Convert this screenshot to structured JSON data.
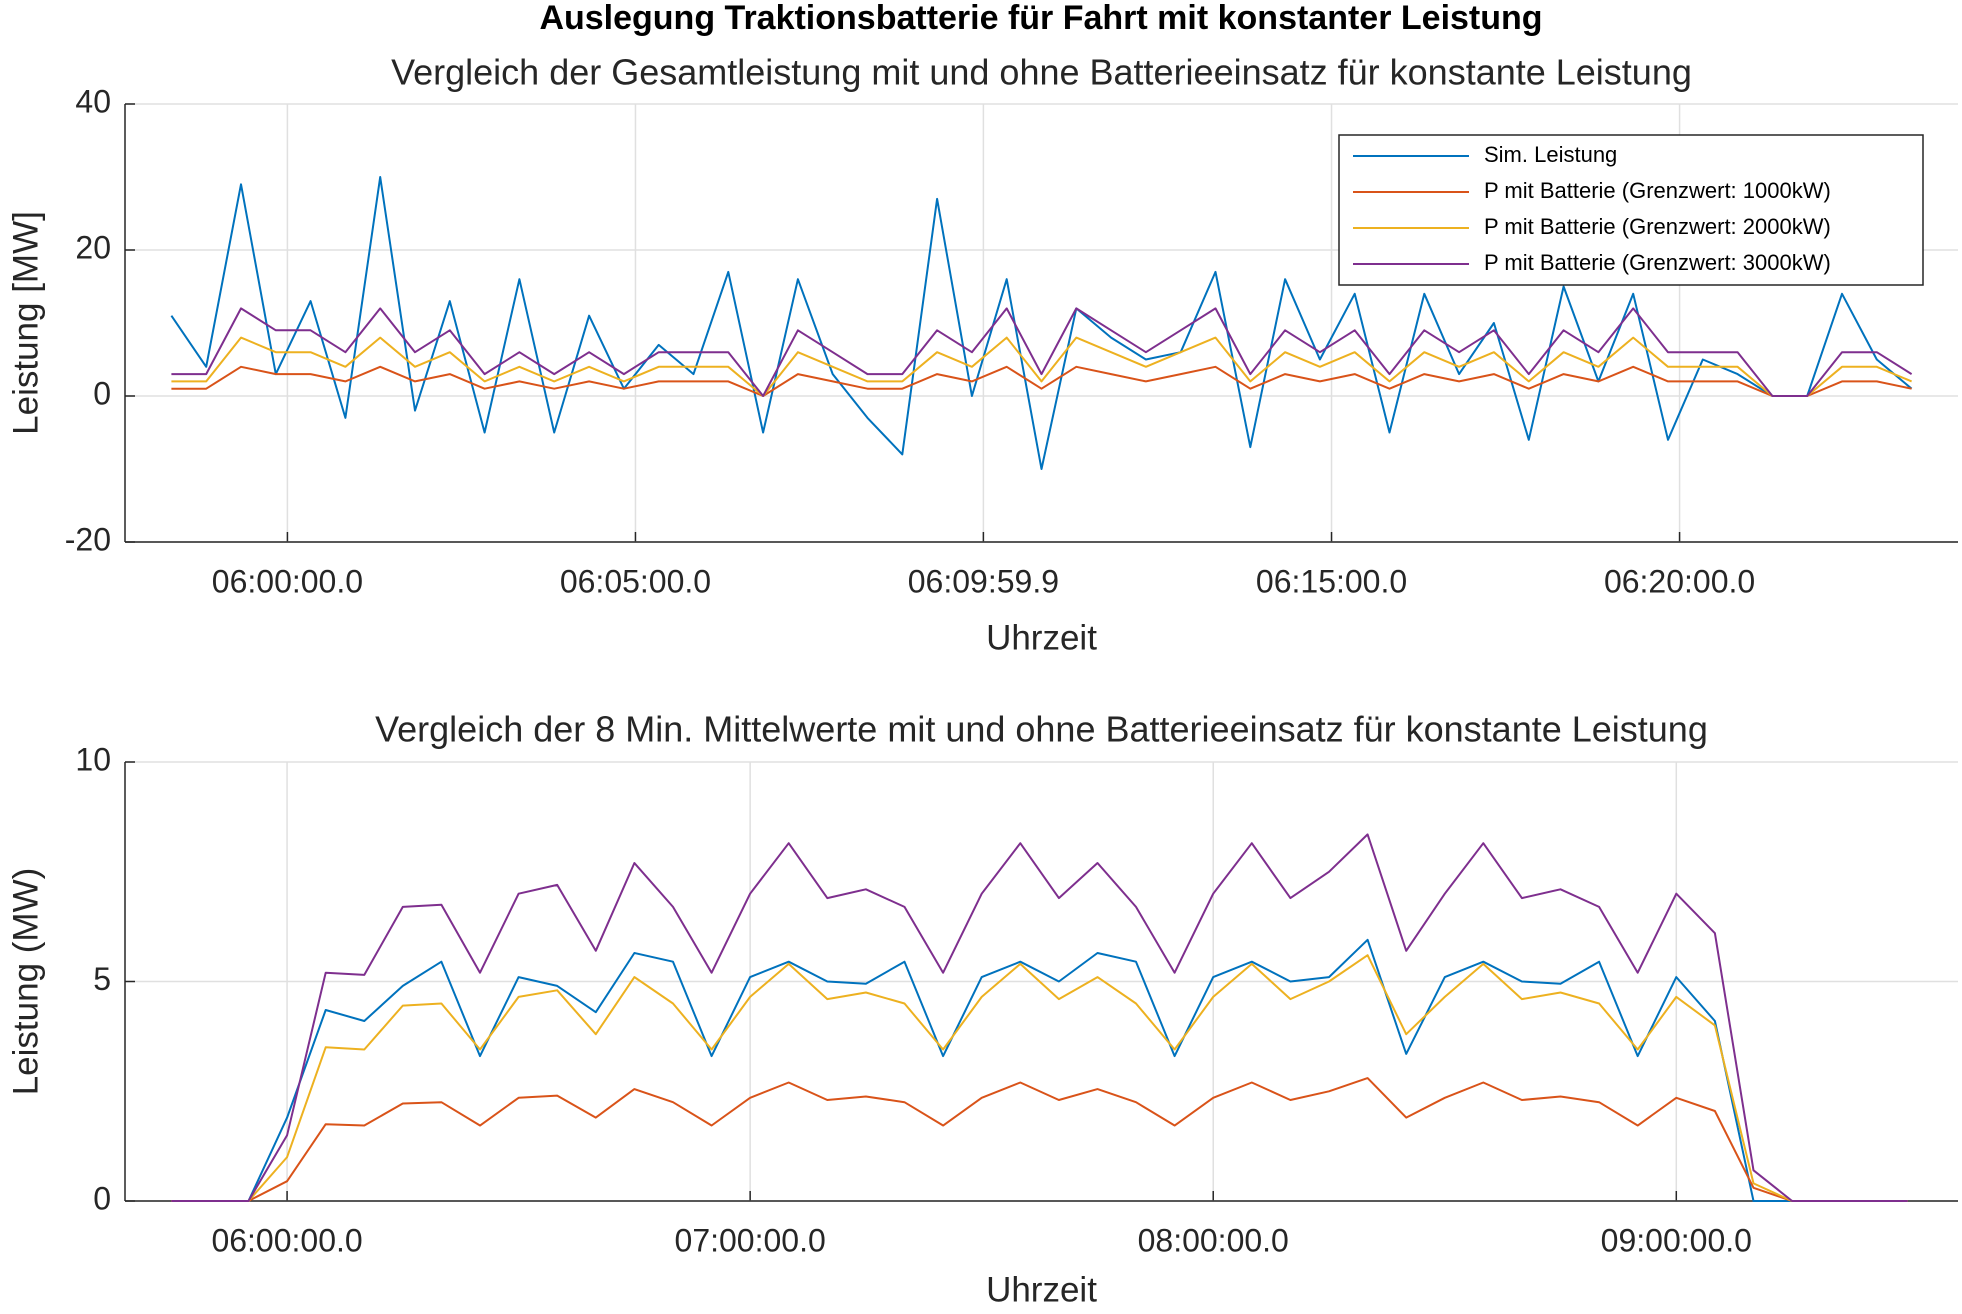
{
  "title": "Auslegung Traktionsbatterie für Fahrt mit konstanter Leistung",
  "chart_data": [
    {
      "type": "line",
      "title": "Vergleich der Gesamtleistung mit und ohne Batterieeinsatz für konstante Leistung",
      "xlabel": "Uhrzeit",
      "ylabel": "Leistung [MW]",
      "x": [
        "05:58:20",
        "05:58:50",
        "05:59:20",
        "05:59:50",
        "06:00:20",
        "06:00:50",
        "06:01:20",
        "06:01:50",
        "06:02:20",
        "06:02:50",
        "06:03:20",
        "06:03:50",
        "06:04:20",
        "06:04:50",
        "06:05:20",
        "06:05:50",
        "06:06:20",
        "06:06:50",
        "06:07:20",
        "06:07:50",
        "06:08:20",
        "06:08:50",
        "06:09:20",
        "06:09:50",
        "06:10:20",
        "06:10:50",
        "06:11:20",
        "06:11:50",
        "06:12:20",
        "06:12:50",
        "06:13:20",
        "06:13:50",
        "06:14:20",
        "06:14:50",
        "06:15:20",
        "06:15:50",
        "06:16:20",
        "06:16:50",
        "06:17:20",
        "06:17:50",
        "06:18:20",
        "06:18:50",
        "06:19:20",
        "06:19:50",
        "06:20:20",
        "06:20:50",
        "06:21:20",
        "06:21:50",
        "06:22:20",
        "06:22:50",
        "06:23:20"
      ],
      "xlim": [
        "05:57:40",
        "06:24:00"
      ],
      "xticks": [
        "06:00:00.0",
        "06:05:00.0",
        "06:09:59.9",
        "06:15:00.0",
        "06:20:00.0"
      ],
      "ylim": [
        -20,
        40
      ],
      "yticks": [
        -20,
        0,
        20,
        40
      ],
      "grid": true,
      "legend": "northeast",
      "series": [
        {
          "name": "Sim. Leistung",
          "color": "#0072bd",
          "values": [
            11,
            4,
            29,
            3,
            13,
            -3,
            30,
            -2,
            13,
            -5,
            16,
            -5,
            11,
            1,
            7,
            3,
            17,
            -5,
            16,
            3,
            -3,
            -8,
            27,
            0,
            16,
            -10,
            12,
            8,
            5,
            6,
            17,
            -7,
            16,
            5,
            14,
            -5,
            14,
            3,
            10,
            -6,
            15,
            2,
            14,
            -6,
            5,
            3,
            0,
            0,
            14,
            5,
            1
          ]
        },
        {
          "name": "P mit Batterie (Grenzwert: 1000kW)",
          "color": "#d95319",
          "values": [
            1,
            1,
            4,
            3,
            3,
            2,
            4,
            2,
            3,
            1,
            2,
            1,
            2,
            1,
            2,
            2,
            2,
            0,
            3,
            2,
            1,
            1,
            3,
            2,
            4,
            1,
            4,
            3,
            2,
            3,
            4,
            1,
            3,
            2,
            3,
            1,
            3,
            2,
            3,
            1,
            3,
            2,
            4,
            2,
            2,
            2,
            0,
            0,
            2,
            2,
            1
          ]
        },
        {
          "name": "P mit Batterie (Grenzwert: 2000kW)",
          "color": "#edb120",
          "values": [
            2,
            2,
            8,
            6,
            6,
            4,
            8,
            4,
            6,
            2,
            4,
            2,
            4,
            2,
            4,
            4,
            4,
            0,
            6,
            4,
            2,
            2,
            6,
            4,
            8,
            2,
            8,
            6,
            4,
            6,
            8,
            2,
            6,
            4,
            6,
            2,
            6,
            4,
            6,
            2,
            6,
            4,
            8,
            4,
            4,
            4,
            0,
            0,
            4,
            4,
            2
          ]
        },
        {
          "name": "P mit Batterie (Grenzwert: 3000kW)",
          "color": "#7e2f8e",
          "values": [
            3,
            3,
            12,
            9,
            9,
            6,
            12,
            6,
            9,
            3,
            6,
            3,
            6,
            3,
            6,
            6,
            6,
            0,
            9,
            6,
            3,
            3,
            9,
            6,
            12,
            3,
            12,
            9,
            6,
            9,
            12,
            3,
            9,
            6,
            9,
            3,
            9,
            6,
            9,
            3,
            9,
            6,
            12,
            6,
            6,
            6,
            0,
            0,
            6,
            6,
            3
          ]
        }
      ]
    },
    {
      "type": "line",
      "title": "Vergleich der 8 Min. Mittelwerte mit und ohne Batterieeinsatz für konstante Leistung",
      "xlabel": "Uhrzeit",
      "ylabel": "Leistung (MW)",
      "x": [
        "05:45:00",
        "05:50:00",
        "05:55:00",
        "06:00:00",
        "06:05:00",
        "06:10:00",
        "06:15:00",
        "06:20:00",
        "06:25:00",
        "06:30:00",
        "06:35:00",
        "06:40:00",
        "06:45:00",
        "06:50:00",
        "06:55:00",
        "07:00:00",
        "07:05:00",
        "07:10:00",
        "07:15:00",
        "07:20:00",
        "07:25:00",
        "07:30:00",
        "07:35:00",
        "07:40:00",
        "07:45:00",
        "07:50:00",
        "07:55:00",
        "08:00:00",
        "08:05:00",
        "08:10:00",
        "08:15:00",
        "08:20:00",
        "08:25:00",
        "08:30:00",
        "08:35:00",
        "08:40:00",
        "08:45:00",
        "08:50:00",
        "08:55:00",
        "09:00:00",
        "09:05:00",
        "09:10:00",
        "09:15:00",
        "09:20:00",
        "09:25:00",
        "09:30:00"
      ],
      "xlim": [
        "05:39:00",
        "09:36:30"
      ],
      "xticks": [
        "06:00:00.0",
        "07:00:00.0",
        "08:00:00.0",
        "09:00:00.0"
      ],
      "ylim": [
        0,
        10
      ],
      "yticks": [
        0,
        5,
        10
      ],
      "grid": true,
      "series": [
        {
          "color": "#0072bd",
          "values": [
            0,
            0,
            0,
            1.9,
            4.35,
            4.1,
            4.9,
            5.45,
            3.3,
            5.1,
            4.9,
            4.3,
            5.65,
            5.45,
            3.3,
            5.1,
            5.45,
            5.0,
            4.95,
            5.45,
            3.3,
            5.1,
            5.45,
            5.0,
            5.65,
            5.45,
            3.3,
            5.1,
            5.45,
            5.0,
            5.1,
            5.95,
            3.35,
            5.1,
            5.45,
            5.0,
            4.95,
            5.45,
            3.3,
            5.1,
            4.1,
            0,
            0,
            0,
            0,
            0
          ]
        },
        {
          "color": "#d95319",
          "values": [
            0,
            0,
            0,
            0.45,
            1.75,
            1.72,
            2.22,
            2.25,
            1.72,
            2.35,
            2.4,
            1.9,
            2.55,
            2.25,
            1.72,
            2.35,
            2.7,
            2.3,
            2.38,
            2.25,
            1.72,
            2.35,
            2.7,
            2.3,
            2.55,
            2.25,
            1.72,
            2.35,
            2.7,
            2.3,
            2.5,
            2.8,
            1.9,
            2.35,
            2.7,
            2.3,
            2.38,
            2.25,
            1.72,
            2.35,
            2.05,
            0.3,
            0,
            0,
            0,
            0
          ]
        },
        {
          "color": "#edb120",
          "values": [
            0,
            0,
            0,
            1.0,
            3.5,
            3.45,
            4.45,
            4.5,
            3.45,
            4.65,
            4.8,
            3.8,
            5.1,
            4.5,
            3.45,
            4.65,
            5.4,
            4.6,
            4.75,
            4.5,
            3.45,
            4.65,
            5.4,
            4.6,
            5.1,
            4.5,
            3.45,
            4.65,
            5.4,
            4.6,
            5.0,
            5.6,
            3.8,
            4.65,
            5.4,
            4.6,
            4.75,
            4.5,
            3.45,
            4.65,
            4.0,
            0.4,
            0,
            0,
            0,
            0
          ]
        },
        {
          "color": "#7e2f8e",
          "values": [
            0,
            0,
            0,
            1.5,
            5.2,
            5.15,
            6.7,
            6.75,
            5.2,
            7.0,
            7.2,
            5.7,
            7.7,
            6.7,
            5.2,
            7.0,
            8.15,
            6.9,
            7.1,
            6.7,
            5.2,
            7.0,
            8.15,
            6.9,
            7.7,
            6.7,
            5.2,
            7.0,
            8.15,
            6.9,
            7.5,
            8.35,
            5.7,
            7.0,
            8.15,
            6.9,
            7.1,
            6.7,
            5.2,
            7.0,
            6.1,
            0.7,
            0,
            0,
            0,
            0
          ]
        }
      ]
    }
  ]
}
